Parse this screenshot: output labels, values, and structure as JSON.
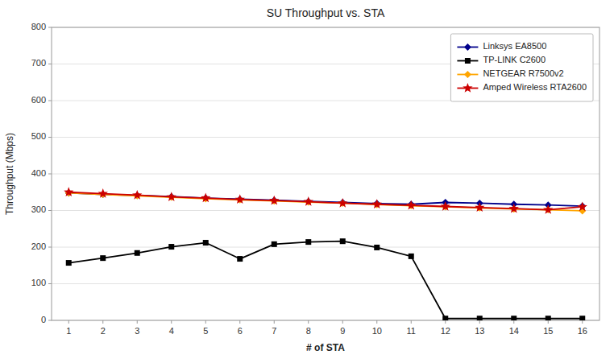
{
  "chart_data": {
    "type": "line",
    "title": "SU Throughput vs. STA",
    "x_label": "# of STA",
    "y_label": "Throughput (Mbps)",
    "x": [
      1,
      2,
      3,
      4,
      5,
      6,
      7,
      8,
      9,
      10,
      11,
      12,
      13,
      14,
      15,
      16
    ],
    "xlim": [
      0.5,
      16.5
    ],
    "xticks": [
      1,
      2,
      3,
      4,
      5,
      6,
      7,
      8,
      9,
      10,
      11,
      12,
      13,
      14,
      15,
      16
    ],
    "ylim": [
      0,
      800
    ],
    "yticks": [
      0,
      100,
      200,
      300,
      400,
      500,
      600,
      700,
      800
    ],
    "grid": true,
    "legend": "upper right",
    "series": [
      {
        "name": "Linksys EA8500",
        "color": "#00008B",
        "marker": "diamond",
        "values": [
          348,
          344,
          341,
          338,
          334,
          331,
          328,
          325,
          322,
          319,
          317,
          322,
          320,
          317,
          315,
          312
        ]
      },
      {
        "name": "TP-LINK C2600",
        "color": "#000000",
        "marker": "square",
        "values": [
          157,
          170,
          184,
          201,
          212,
          168,
          208,
          214,
          216,
          199,
          175,
          5,
          5,
          5,
          5,
          5
        ]
      },
      {
        "name": "NETGEAR R7500v2",
        "color": "#FFA500",
        "marker": "diamond",
        "values": [
          348,
          344,
          340,
          336,
          332,
          329,
          326,
          323,
          320,
          316,
          313,
          310,
          307,
          304,
          302,
          299
        ]
      },
      {
        "name": "Amped Wireless RTA2600",
        "color": "#CC0000",
        "marker": "star",
        "values": [
          350,
          346,
          342,
          337,
          334,
          330,
          327,
          324,
          320,
          317,
          314,
          311,
          308,
          305,
          302,
          310
        ]
      }
    ]
  }
}
